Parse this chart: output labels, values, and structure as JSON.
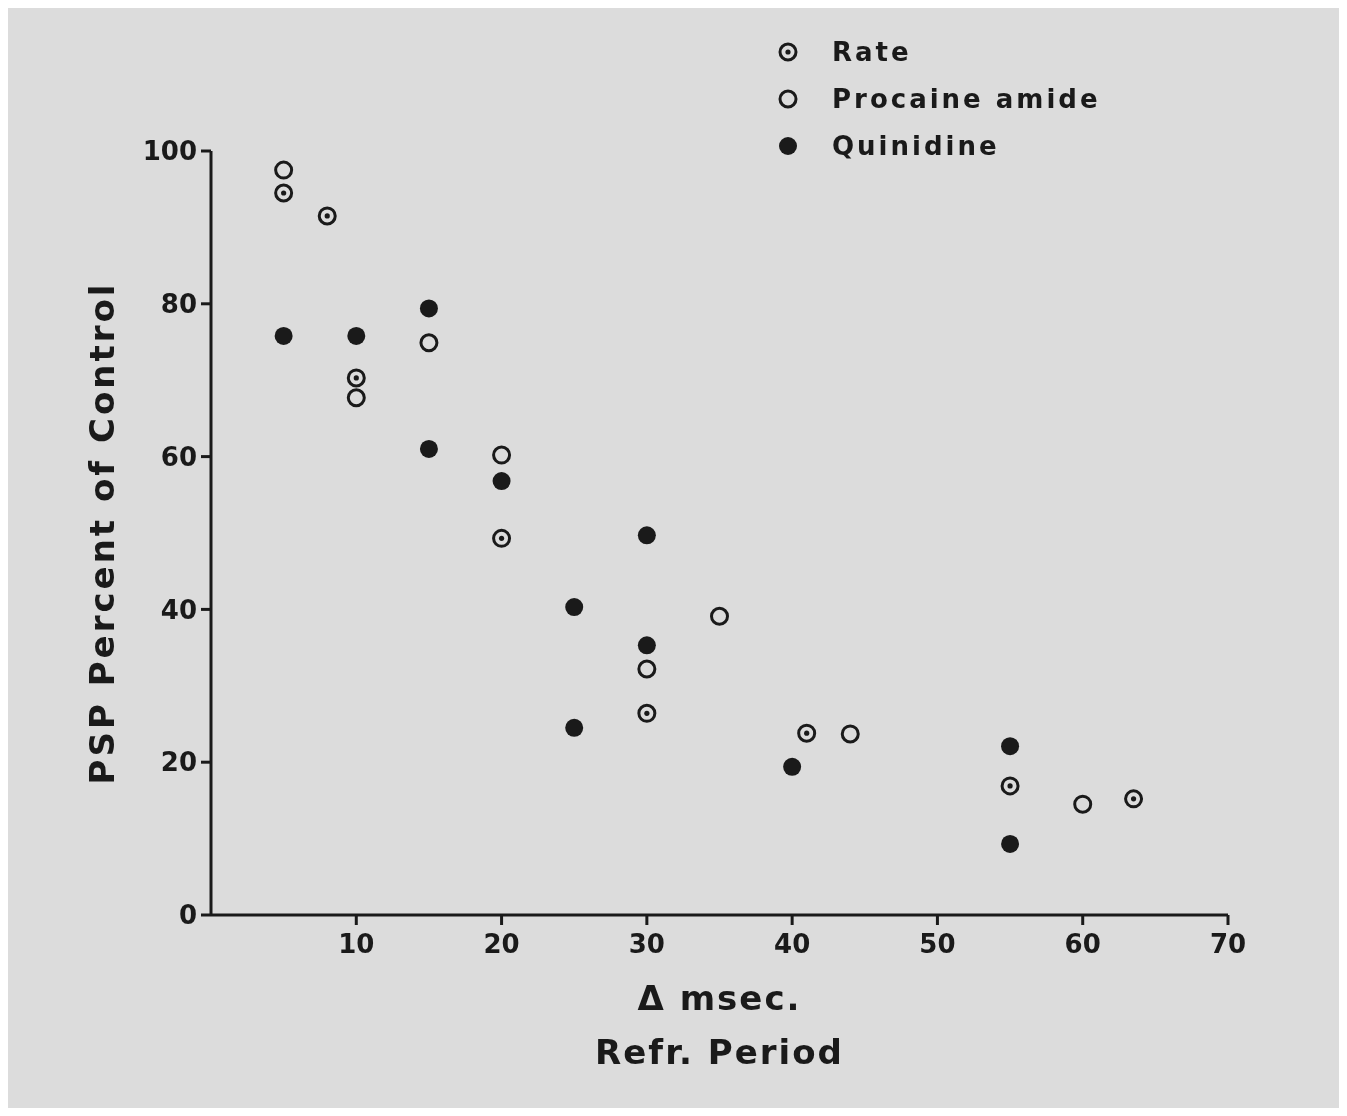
{
  "chart_data": {
    "type": "scatter",
    "xlabel": "Δ msec.\nRefr. Period",
    "ylabel": "PSP Percent of Control",
    "xlim": [
      0,
      70
    ],
    "xticks": [
      10,
      20,
      30,
      40,
      50,
      60,
      70
    ],
    "ylim": [
      0,
      100
    ],
    "yticks": [
      0,
      20,
      40,
      60,
      80,
      100
    ],
    "grid": false,
    "legend": "top right",
    "series": [
      {
        "name": "Rate",
        "color": "#1a1a1a",
        "marker": "circle",
        "x": [
          5,
          8,
          10,
          20,
          30,
          41,
          55,
          63.5
        ],
        "values": [
          94.5,
          91.5,
          70.3,
          49.3,
          26.4,
          23.8,
          16.9,
          15.2
        ]
      },
      {
        "name": "Procaine amide",
        "color": "#1a1a1a",
        "marker": "circle",
        "x": [
          5,
          10,
          15,
          20,
          30,
          35,
          44,
          60
        ],
        "values": [
          97.5,
          67.7,
          74.9,
          60.2,
          32.2,
          39.1,
          23.7,
          14.5
        ]
      },
      {
        "name": "Quinidine",
        "color": "#1a1a1a",
        "marker": "circle",
        "x": [
          5,
          10,
          15,
          15,
          20,
          25,
          25,
          30,
          30,
          40,
          55,
          55
        ],
        "values": [
          75.8,
          75.8,
          79.4,
          61,
          56.8,
          40.3,
          24.5,
          49.7,
          35.3,
          19.4,
          22.1,
          9.3
        ]
      }
    ]
  }
}
